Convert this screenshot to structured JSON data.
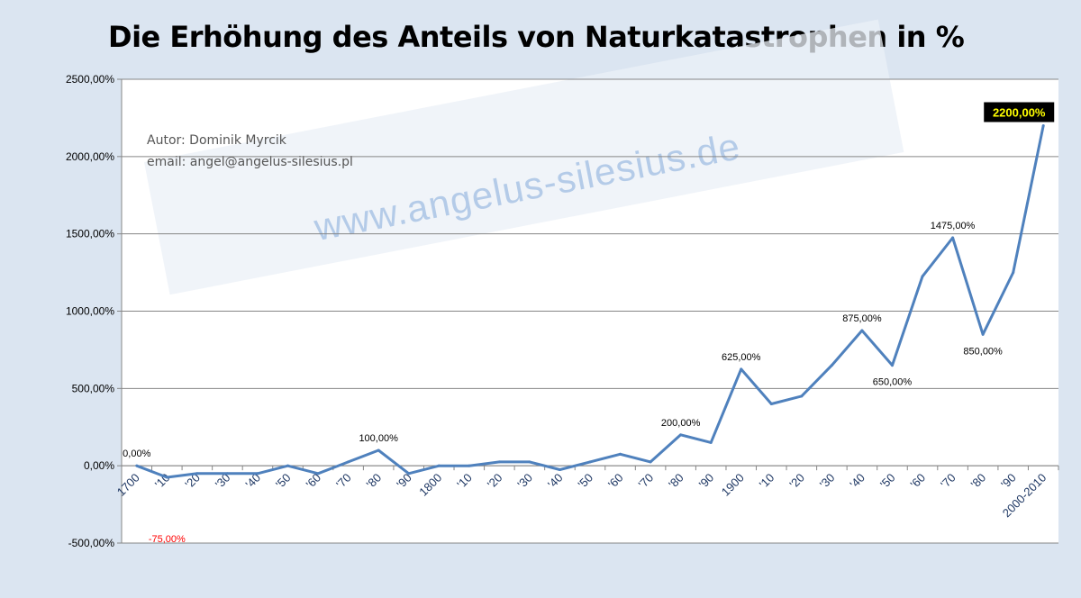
{
  "title": "Die Erhöhung des Anteils von Naturkatastrophen in %",
  "author": {
    "line1": "Autor:  Dominik Myrcik",
    "line2": "email:  angel@angelus-silesius.pl"
  },
  "watermark": "www.angelus-silesius.de",
  "colors": {
    "background": "#dbe5f1",
    "line": "#4f81bd",
    "tick_label": "#1f3864",
    "negative_label": "#ff0000",
    "highlight_fill": "#ffff00"
  },
  "chart_data": {
    "type": "line",
    "title": "Die Erhöhung des Anteils von Naturkatastrophen in %",
    "xlabel": "",
    "ylabel": "",
    "ylim": [
      -500,
      2500
    ],
    "y_ticks": [
      -500,
      0,
      500,
      1000,
      1500,
      2000,
      2500
    ],
    "y_tick_labels": [
      "-500,00%",
      "0,00%",
      "500,00%",
      "1000,00%",
      "1500,00%",
      "2000,00%",
      "2500,00%"
    ],
    "grid": true,
    "legend": "none",
    "categories": [
      "1700",
      "'10",
      "'20",
      "'30",
      "'40",
      "'50",
      "'60",
      "'70",
      "'80",
      "'90",
      "1800",
      "'10",
      "'20",
      "'30",
      "'40",
      "'50",
      "'60",
      "'70",
      "'80",
      "'90",
      "1900",
      "'10",
      "'20",
      "'30",
      "'40",
      "'50",
      "'60",
      "'70",
      "'80",
      "'90",
      "2000-2010"
    ],
    "series": [
      {
        "values": [
          0,
          -75,
          -50,
          -50,
          -50,
          0,
          -50,
          25,
          100,
          -50,
          0,
          0,
          25,
          25,
          -25,
          25,
          75,
          25,
          200,
          150,
          625,
          400,
          450,
          650,
          875,
          650,
          1225,
          1475,
          850,
          1250,
          2200
        ]
      }
    ],
    "data_labels": [
      {
        "index": 0,
        "text": "0,00%",
        "pos": "above"
      },
      {
        "index": 1,
        "text": "-75,00%",
        "pos": "far-below",
        "color": "#ff0000"
      },
      {
        "index": 8,
        "text": "100,00%",
        "pos": "above"
      },
      {
        "index": 18,
        "text": "200,00%",
        "pos": "above"
      },
      {
        "index": 20,
        "text": "625,00%",
        "pos": "above"
      },
      {
        "index": 24,
        "text": "875,00%",
        "pos": "above"
      },
      {
        "index": 25,
        "text": "650,00%",
        "pos": "below"
      },
      {
        "index": 27,
        "text": "1475,00%",
        "pos": "above"
      },
      {
        "index": 28,
        "text": "850,00%",
        "pos": "below"
      },
      {
        "index": 30,
        "text": "2200,00%",
        "pos": "highlight"
      }
    ]
  }
}
